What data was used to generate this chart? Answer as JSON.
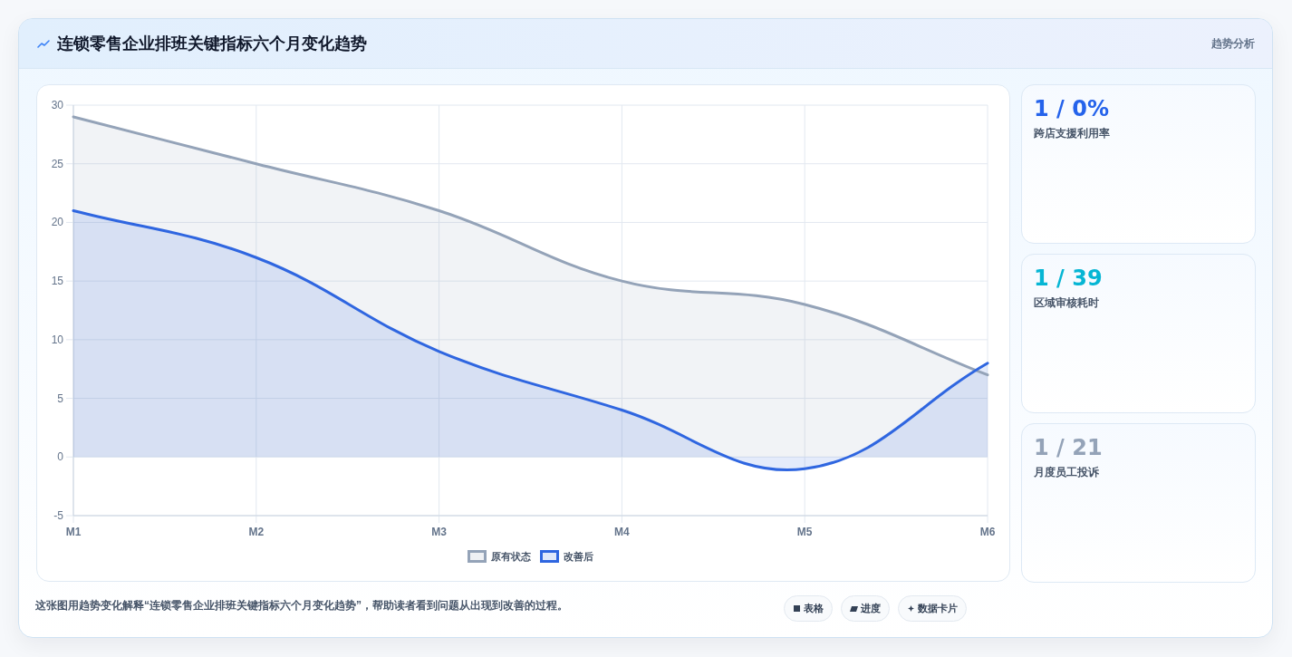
{
  "chart_data": [
    {
      "type": "area",
      "title": "连锁零售企业排班关键指标六个月变化趋势",
      "categories": [
        "M1",
        "M2",
        "M3",
        "M4",
        "M5",
        "M6"
      ],
      "series": [
        {
          "name": "原有状态",
          "color": "#94a3b8",
          "values": [
            29,
            25,
            21,
            15,
            13,
            7
          ]
        },
        {
          "name": "改善后",
          "color": "#2f66e0",
          "values": [
            21,
            17,
            9,
            4,
            -1,
            8
          ]
        }
      ],
      "ylim": [
        -5,
        30
      ],
      "yticks": [
        -5,
        0,
        5,
        10,
        15,
        20,
        25,
        30
      ],
      "grid": true,
      "legend": "bottom",
      "annotations": [
        "趋势分析",
        "这张图用趋势变化解释“连锁零售企业排班关键指标六个月变化趋势”，帮助读者看到问题从出现到改善的过程。",
        "表格",
        "进度",
        "数据卡片"
      ]
    },
    {
      "type": "other",
      "title": "1 / 0%",
      "subtitle": "跨店支援利用率",
      "color": "#2563eb"
    },
    {
      "type": "other",
      "title": "1 / 39",
      "subtitle": "区域审核耗时",
      "color": "#06b6d4"
    },
    {
      "type": "other",
      "title": "1 / 21",
      "subtitle": "月度员工投诉",
      "color": "#94a3b8"
    }
  ]
}
